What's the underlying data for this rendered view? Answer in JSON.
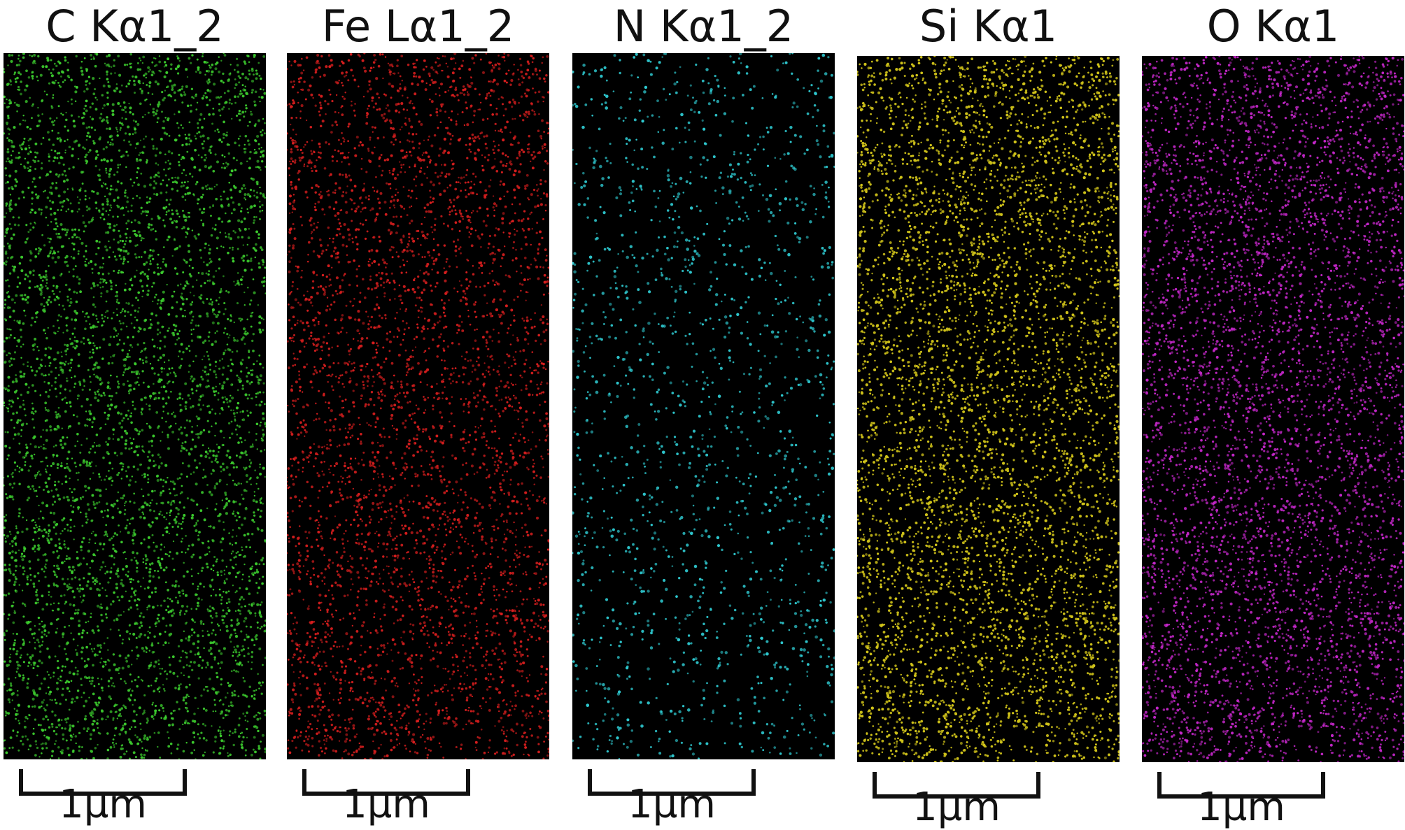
{
  "panels": [
    {
      "label": "C Kα1_2",
      "scale_label": "1µm",
      "color": "#3ccc2e"
    },
    {
      "label": "Fe Lα1_2",
      "scale_label": "1µm",
      "color": "#d81e1e"
    },
    {
      "label": "N Kα1_2",
      "scale_label": "1µm",
      "color": "#2ec8cf"
    },
    {
      "label": "Si Kα1",
      "scale_label": "1µm",
      "color": "#cfc21a"
    },
    {
      "label": "O Kα1",
      "scale_label": "1µm",
      "color": "#c427c9"
    }
  ]
}
